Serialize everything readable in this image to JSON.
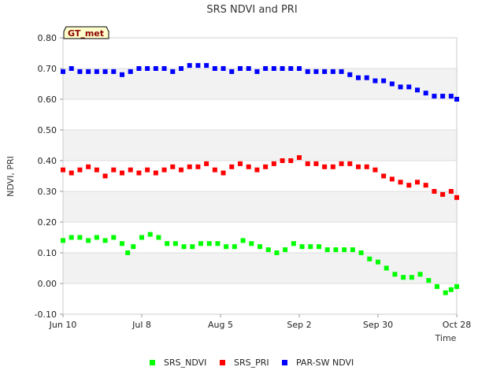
{
  "chart_data": {
    "type": "scatter",
    "title": "SRS NDVI and PRI",
    "site_label": "GT_met",
    "xlabel": "Time",
    "ylabel": "NDVI, PRI",
    "xlim": [
      "2024-06-10",
      "2024-10-28"
    ],
    "ylim": [
      -0.1,
      0.8
    ],
    "x_ticks": [
      {
        "date": "2024-06-10",
        "label": "Jun 10"
      },
      {
        "date": "2024-07-08",
        "label": "Jul 8"
      },
      {
        "date": "2024-08-05",
        "label": "Aug 5"
      },
      {
        "date": "2024-09-02",
        "label": "Sep 2"
      },
      {
        "date": "2024-09-30",
        "label": "Sep 30"
      },
      {
        "date": "2024-10-28",
        "label": "Oct 28"
      }
    ],
    "y_ticks": [
      {
        "value": -0.1,
        "label": "-0.10"
      },
      {
        "value": 0.0,
        "label": "0.00"
      },
      {
        "value": 0.1,
        "label": "0.10"
      },
      {
        "value": 0.2,
        "label": "0.20"
      },
      {
        "value": 0.3,
        "label": "0.30"
      },
      {
        "value": 0.4,
        "label": "0.40"
      },
      {
        "value": 0.5,
        "label": "0.50"
      },
      {
        "value": 0.6,
        "label": "0.60"
      },
      {
        "value": 0.7,
        "label": "0.70"
      },
      {
        "value": 0.8,
        "label": "0.80"
      }
    ],
    "grid": "horizontal alternating bands",
    "legend_position": "bottom",
    "series": [
      {
        "name": "SRS_NDVI",
        "color": "#00ff00",
        "points": [
          [
            "2024-06-10",
            0.14
          ],
          [
            "2024-06-13",
            0.15
          ],
          [
            "2024-06-16",
            0.15
          ],
          [
            "2024-06-19",
            0.14
          ],
          [
            "2024-06-22",
            0.15
          ],
          [
            "2024-06-25",
            0.14
          ],
          [
            "2024-06-28",
            0.15
          ],
          [
            "2024-07-01",
            0.13
          ],
          [
            "2024-07-03",
            0.1
          ],
          [
            "2024-07-05",
            0.12
          ],
          [
            "2024-07-08",
            0.15
          ],
          [
            "2024-07-11",
            0.16
          ],
          [
            "2024-07-14",
            0.15
          ],
          [
            "2024-07-17",
            0.13
          ],
          [
            "2024-07-20",
            0.13
          ],
          [
            "2024-07-23",
            0.12
          ],
          [
            "2024-07-26",
            0.12
          ],
          [
            "2024-07-29",
            0.13
          ],
          [
            "2024-08-01",
            0.13
          ],
          [
            "2024-08-04",
            0.13
          ],
          [
            "2024-08-07",
            0.12
          ],
          [
            "2024-08-10",
            0.12
          ],
          [
            "2024-08-13",
            0.14
          ],
          [
            "2024-08-16",
            0.13
          ],
          [
            "2024-08-19",
            0.12
          ],
          [
            "2024-08-22",
            0.11
          ],
          [
            "2024-08-25",
            0.1
          ],
          [
            "2024-08-28",
            0.11
          ],
          [
            "2024-08-31",
            0.13
          ],
          [
            "2024-09-03",
            0.12
          ],
          [
            "2024-09-06",
            0.12
          ],
          [
            "2024-09-09",
            0.12
          ],
          [
            "2024-09-12",
            0.11
          ],
          [
            "2024-09-15",
            0.11
          ],
          [
            "2024-09-18",
            0.11
          ],
          [
            "2024-09-21",
            0.11
          ],
          [
            "2024-09-24",
            0.1
          ],
          [
            "2024-09-27",
            0.08
          ],
          [
            "2024-09-30",
            0.07
          ],
          [
            "2024-10-03",
            0.05
          ],
          [
            "2024-10-06",
            0.03
          ],
          [
            "2024-10-09",
            0.02
          ],
          [
            "2024-10-12",
            0.02
          ],
          [
            "2024-10-15",
            0.03
          ],
          [
            "2024-10-18",
            0.01
          ],
          [
            "2024-10-21",
            -0.01
          ],
          [
            "2024-10-24",
            -0.03
          ],
          [
            "2024-10-26",
            -0.02
          ],
          [
            "2024-10-28",
            -0.01
          ]
        ]
      },
      {
        "name": "SRS_PRI",
        "color": "#ff0000",
        "points": [
          [
            "2024-06-10",
            0.37
          ],
          [
            "2024-06-13",
            0.36
          ],
          [
            "2024-06-16",
            0.37
          ],
          [
            "2024-06-19",
            0.38
          ],
          [
            "2024-06-22",
            0.37
          ],
          [
            "2024-06-25",
            0.35
          ],
          [
            "2024-06-28",
            0.37
          ],
          [
            "2024-07-01",
            0.36
          ],
          [
            "2024-07-04",
            0.37
          ],
          [
            "2024-07-07",
            0.36
          ],
          [
            "2024-07-10",
            0.37
          ],
          [
            "2024-07-13",
            0.36
          ],
          [
            "2024-07-16",
            0.37
          ],
          [
            "2024-07-19",
            0.38
          ],
          [
            "2024-07-22",
            0.37
          ],
          [
            "2024-07-25",
            0.38
          ],
          [
            "2024-07-28",
            0.38
          ],
          [
            "2024-07-31",
            0.39
          ],
          [
            "2024-08-03",
            0.37
          ],
          [
            "2024-08-06",
            0.36
          ],
          [
            "2024-08-09",
            0.38
          ],
          [
            "2024-08-12",
            0.39
          ],
          [
            "2024-08-15",
            0.38
          ],
          [
            "2024-08-18",
            0.37
          ],
          [
            "2024-08-21",
            0.38
          ],
          [
            "2024-08-24",
            0.39
          ],
          [
            "2024-08-27",
            0.4
          ],
          [
            "2024-08-30",
            0.4
          ],
          [
            "2024-09-02",
            0.41
          ],
          [
            "2024-09-05",
            0.39
          ],
          [
            "2024-09-08",
            0.39
          ],
          [
            "2024-09-11",
            0.38
          ],
          [
            "2024-09-14",
            0.38
          ],
          [
            "2024-09-17",
            0.39
          ],
          [
            "2024-09-20",
            0.39
          ],
          [
            "2024-09-23",
            0.38
          ],
          [
            "2024-09-26",
            0.38
          ],
          [
            "2024-09-29",
            0.37
          ],
          [
            "2024-10-02",
            0.35
          ],
          [
            "2024-10-05",
            0.34
          ],
          [
            "2024-10-08",
            0.33
          ],
          [
            "2024-10-11",
            0.32
          ],
          [
            "2024-10-14",
            0.33
          ],
          [
            "2024-10-17",
            0.32
          ],
          [
            "2024-10-20",
            0.3
          ],
          [
            "2024-10-23",
            0.29
          ],
          [
            "2024-10-26",
            0.3
          ],
          [
            "2024-10-28",
            0.28
          ]
        ]
      },
      {
        "name": "PAR-SW NDVI",
        "color": "#0000ff",
        "points": [
          [
            "2024-06-10",
            0.69
          ],
          [
            "2024-06-13",
            0.7
          ],
          [
            "2024-06-16",
            0.69
          ],
          [
            "2024-06-19",
            0.69
          ],
          [
            "2024-06-22",
            0.69
          ],
          [
            "2024-06-25",
            0.69
          ],
          [
            "2024-06-28",
            0.69
          ],
          [
            "2024-07-01",
            0.68
          ],
          [
            "2024-07-04",
            0.69
          ],
          [
            "2024-07-07",
            0.7
          ],
          [
            "2024-07-10",
            0.7
          ],
          [
            "2024-07-13",
            0.7
          ],
          [
            "2024-07-16",
            0.7
          ],
          [
            "2024-07-19",
            0.69
          ],
          [
            "2024-07-22",
            0.7
          ],
          [
            "2024-07-25",
            0.71
          ],
          [
            "2024-07-28",
            0.71
          ],
          [
            "2024-07-31",
            0.71
          ],
          [
            "2024-08-03",
            0.7
          ],
          [
            "2024-08-06",
            0.7
          ],
          [
            "2024-08-09",
            0.69
          ],
          [
            "2024-08-12",
            0.7
          ],
          [
            "2024-08-15",
            0.7
          ],
          [
            "2024-08-18",
            0.69
          ],
          [
            "2024-08-21",
            0.7
          ],
          [
            "2024-08-24",
            0.7
          ],
          [
            "2024-08-27",
            0.7
          ],
          [
            "2024-08-30",
            0.7
          ],
          [
            "2024-09-02",
            0.7
          ],
          [
            "2024-09-05",
            0.69
          ],
          [
            "2024-09-08",
            0.69
          ],
          [
            "2024-09-11",
            0.69
          ],
          [
            "2024-09-14",
            0.69
          ],
          [
            "2024-09-17",
            0.69
          ],
          [
            "2024-09-20",
            0.68
          ],
          [
            "2024-09-23",
            0.67
          ],
          [
            "2024-09-26",
            0.67
          ],
          [
            "2024-09-29",
            0.66
          ],
          [
            "2024-10-02",
            0.66
          ],
          [
            "2024-10-05",
            0.65
          ],
          [
            "2024-10-08",
            0.64
          ],
          [
            "2024-10-11",
            0.64
          ],
          [
            "2024-10-14",
            0.63
          ],
          [
            "2024-10-17",
            0.62
          ],
          [
            "2024-10-20",
            0.61
          ],
          [
            "2024-10-23",
            0.61
          ],
          [
            "2024-10-26",
            0.61
          ],
          [
            "2024-10-28",
            0.6
          ]
        ]
      }
    ]
  }
}
